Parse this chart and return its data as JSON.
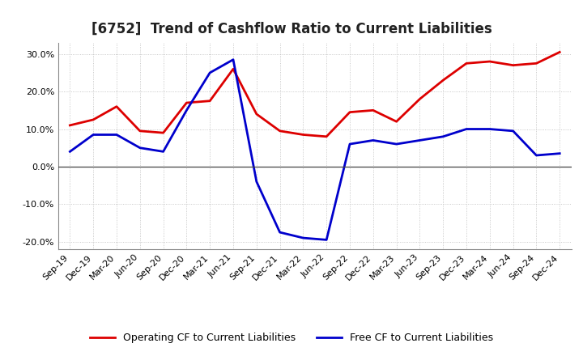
{
  "title": "[6752]  Trend of Cashflow Ratio to Current Liabilities",
  "x_labels": [
    "Sep-19",
    "Dec-19",
    "Mar-20",
    "Jun-20",
    "Sep-20",
    "Dec-20",
    "Mar-21",
    "Jun-21",
    "Sep-21",
    "Dec-21",
    "Mar-22",
    "Jun-22",
    "Sep-22",
    "Dec-22",
    "Mar-23",
    "Jun-23",
    "Sep-23",
    "Dec-23",
    "Mar-24",
    "Jun-24",
    "Sep-24",
    "Dec-24"
  ],
  "operating_cf": [
    11.0,
    12.5,
    16.0,
    9.5,
    9.0,
    17.0,
    17.5,
    26.0,
    14.0,
    9.5,
    8.5,
    8.0,
    14.5,
    15.0,
    12.0,
    18.0,
    23.0,
    27.5,
    28.0,
    27.0,
    27.5,
    30.5
  ],
  "free_cf": [
    4.0,
    8.5,
    8.5,
    5.0,
    4.0,
    15.0,
    25.0,
    28.5,
    -4.0,
    -17.5,
    -19.0,
    -19.5,
    6.0,
    7.0,
    6.0,
    7.0,
    8.0,
    10.0,
    10.0,
    9.5,
    3.0,
    3.5
  ],
  "ylim": [
    -22,
    33
  ],
  "yticks": [
    -20,
    -10,
    0,
    10,
    20,
    30
  ],
  "line_color_operating": "#dd0000",
  "line_color_free": "#0000cc",
  "background_color": "#ffffff",
  "grid_color": "#bbbbbb",
  "legend_operating": "Operating CF to Current Liabilities",
  "legend_free": "Free CF to Current Liabilities",
  "title_fontsize": 12,
  "axis_fontsize": 8,
  "legend_fontsize": 9
}
